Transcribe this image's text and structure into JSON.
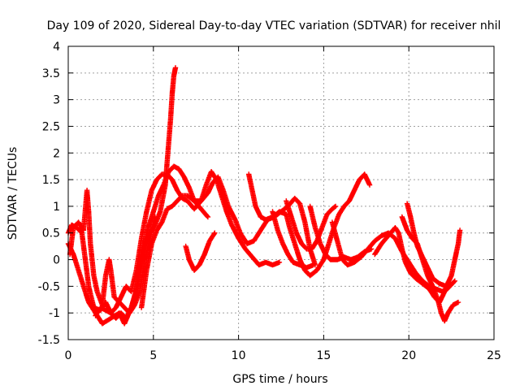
{
  "chart_data": {
    "type": "scatter",
    "title": "Day 109 of 2020, Sidereal Day-to-day VTEC variation (SDTVAR) for receiver nhil",
    "xlabel": "GPS time / hours",
    "ylabel": "SDTVAR / TECUs",
    "xlim": [
      0,
      25
    ],
    "ylim": [
      -1.5,
      4
    ],
    "x_ticks": [
      0,
      5,
      10,
      15,
      20,
      25
    ],
    "y_ticks": [
      -1.5,
      -1,
      -0.5,
      0,
      0.5,
      1,
      1.5,
      2,
      2.5,
      3,
      3.5,
      4
    ],
    "x_tick_labels": [
      "0",
      "5",
      "10",
      "15",
      "20",
      "25"
    ],
    "y_tick_labels": [
      "-1.5",
      "-1",
      "-0.5",
      "0",
      "0.5",
      "1",
      "1.5",
      "2",
      "2.5",
      "3",
      "3.5",
      "4"
    ],
    "grid": true,
    "marker": "plus",
    "color": "#ff0000",
    "series": [
      {
        "points": [
          [
            0.0,
            0.3
          ],
          [
            0.3,
            0.1
          ],
          [
            0.6,
            -0.2
          ],
          [
            0.9,
            -0.5
          ],
          [
            1.2,
            -0.8
          ],
          [
            1.6,
            -1.0
          ],
          [
            2.0,
            -1.2
          ],
          [
            2.5,
            -1.1
          ],
          [
            3.0,
            -1.0
          ],
          [
            3.3,
            -1.2
          ],
          [
            3.7,
            -0.9
          ],
          [
            4.0,
            -0.6
          ],
          [
            4.3,
            0.0
          ],
          [
            4.6,
            0.5
          ],
          [
            5.0,
            0.9
          ],
          [
            5.3,
            1.2
          ],
          [
            5.6,
            1.4
          ],
          [
            5.9,
            1.65
          ],
          [
            6.2,
            1.75
          ],
          [
            6.5,
            1.7
          ],
          [
            6.8,
            1.55
          ],
          [
            7.1,
            1.35
          ],
          [
            7.4,
            1.1
          ],
          [
            7.8,
            0.95
          ],
          [
            8.2,
            0.8
          ]
        ]
      },
      {
        "points": [
          [
            0.0,
            0.5
          ],
          [
            0.2,
            0.65
          ],
          [
            0.5,
            0.6
          ],
          [
            0.8,
            0.5
          ],
          [
            1.0,
            0.0
          ],
          [
            1.2,
            -0.5
          ],
          [
            1.5,
            -0.9
          ],
          [
            1.9,
            -0.95
          ],
          [
            2.2,
            -0.8
          ],
          [
            2.5,
            -1.0
          ],
          [
            2.8,
            -0.9
          ],
          [
            3.1,
            -0.7
          ],
          [
            3.4,
            -0.5
          ],
          [
            3.7,
            -0.6
          ],
          [
            4.0,
            -0.2
          ],
          [
            4.3,
            0.4
          ],
          [
            4.6,
            0.9
          ],
          [
            4.9,
            1.3
          ],
          [
            5.2,
            1.5
          ],
          [
            5.5,
            1.6
          ],
          [
            5.8,
            1.6
          ],
          [
            6.1,
            1.5
          ],
          [
            6.4,
            1.3
          ],
          [
            6.7,
            1.15
          ],
          [
            7.0,
            1.1
          ],
          [
            7.4,
            0.95
          ],
          [
            7.8,
            1.1
          ],
          [
            8.1,
            1.4
          ],
          [
            8.4,
            1.65
          ],
          [
            8.7,
            1.5
          ],
          [
            9.0,
            1.2
          ],
          [
            9.3,
            0.9
          ],
          [
            9.6,
            0.65
          ],
          [
            10.0,
            0.4
          ],
          [
            10.4,
            0.2
          ],
          [
            10.8,
            0.05
          ],
          [
            11.2,
            -0.1
          ],
          [
            11.6,
            -0.05
          ],
          [
            12.0,
            -0.1
          ],
          [
            12.4,
            -0.05
          ]
        ]
      },
      {
        "points": [
          [
            0.1,
            0.1
          ],
          [
            0.3,
            0.6
          ],
          [
            0.6,
            0.7
          ],
          [
            0.9,
            0.55
          ],
          [
            1.1,
            1.3
          ],
          [
            1.2,
            0.9
          ],
          [
            1.3,
            0.3
          ],
          [
            1.5,
            -0.3
          ],
          [
            1.7,
            -0.6
          ],
          [
            2.0,
            -0.85
          ],
          [
            2.2,
            -0.3
          ],
          [
            2.4,
            0.0
          ],
          [
            2.5,
            -0.2
          ],
          [
            2.7,
            -0.7
          ],
          [
            3.0,
            -0.8
          ],
          [
            3.3,
            -0.9
          ],
          [
            3.6,
            -1.0
          ],
          [
            3.9,
            -0.85
          ],
          [
            4.2,
            -0.6
          ],
          [
            4.5,
            0.0
          ],
          [
            4.8,
            0.4
          ],
          [
            5.1,
            0.8
          ]
        ]
      },
      {
        "points": [
          [
            1.6,
            -1.05
          ],
          [
            1.9,
            -0.9
          ],
          [
            2.2,
            -0.95
          ],
          [
            2.5,
            -1.0
          ],
          [
            2.8,
            -1.1
          ],
          [
            3.1,
            -1.0
          ],
          [
            3.4,
            -1.1
          ],
          [
            3.7,
            -0.9
          ],
          [
            4.0,
            -0.55
          ],
          [
            4.2,
            -0.15
          ],
          [
            4.5,
            0.3
          ],
          [
            4.8,
            0.5
          ],
          [
            5.1,
            0.65
          ],
          [
            5.4,
            0.9
          ],
          [
            5.7,
            1.4
          ],
          [
            5.85,
            2.0
          ],
          [
            6.0,
            2.6
          ],
          [
            6.1,
            3.1
          ],
          [
            6.2,
            3.45
          ],
          [
            6.3,
            3.6
          ]
        ]
      },
      {
        "points": [
          [
            4.3,
            -0.9
          ],
          [
            4.6,
            -0.2
          ],
          [
            4.9,
            0.3
          ],
          [
            5.2,
            0.55
          ],
          [
            5.5,
            0.7
          ],
          [
            5.8,
            0.95
          ],
          [
            6.1,
            1.0
          ],
          [
            6.4,
            1.1
          ],
          [
            6.7,
            1.2
          ],
          [
            7.0,
            1.2
          ],
          [
            7.4,
            1.1
          ],
          [
            7.8,
            1.1
          ],
          [
            8.2,
            1.25
          ],
          [
            8.5,
            1.45
          ],
          [
            8.8,
            1.55
          ],
          [
            9.1,
            1.3
          ],
          [
            9.4,
            1.0
          ],
          [
            9.8,
            0.75
          ],
          [
            10.1,
            0.5
          ],
          [
            10.5,
            0.3
          ],
          [
            10.9,
            0.35
          ],
          [
            11.3,
            0.55
          ],
          [
            11.7,
            0.75
          ],
          [
            12.1,
            0.8
          ],
          [
            12.5,
            0.9
          ],
          [
            12.9,
            1.0
          ],
          [
            13.3,
            1.15
          ],
          [
            13.6,
            1.05
          ],
          [
            13.9,
            0.7
          ],
          [
            14.2,
            0.2
          ],
          [
            14.5,
            -0.1
          ]
        ]
      },
      {
        "points": [
          [
            6.9,
            0.25
          ],
          [
            7.1,
            0.0
          ],
          [
            7.4,
            -0.2
          ],
          [
            7.7,
            -0.1
          ],
          [
            8.0,
            0.1
          ],
          [
            8.3,
            0.35
          ],
          [
            8.6,
            0.5
          ]
        ]
      },
      {
        "points": [
          [
            10.6,
            1.6
          ],
          [
            10.8,
            1.3
          ],
          [
            11.0,
            1.0
          ],
          [
            11.3,
            0.8
          ],
          [
            11.6,
            0.75
          ],
          [
            12.0,
            0.8
          ],
          [
            12.4,
            0.9
          ],
          [
            12.8,
            0.85
          ],
          [
            13.0,
            0.6
          ],
          [
            13.3,
            0.3
          ],
          [
            13.6,
            0.0
          ],
          [
            13.9,
            -0.2
          ],
          [
            14.2,
            -0.3
          ],
          [
            14.6,
            -0.2
          ],
          [
            15.0,
            0.0
          ],
          [
            15.3,
            0.3
          ],
          [
            15.6,
            0.6
          ],
          [
            15.9,
            0.85
          ],
          [
            16.2,
            1.0
          ],
          [
            16.5,
            1.1
          ],
          [
            16.8,
            1.3
          ],
          [
            17.1,
            1.5
          ],
          [
            17.4,
            1.6
          ],
          [
            17.7,
            1.4
          ]
        ]
      },
      {
        "points": [
          [
            12.0,
            0.9
          ],
          [
            12.3,
            0.55
          ],
          [
            12.6,
            0.3
          ],
          [
            12.9,
            0.1
          ],
          [
            13.2,
            -0.05
          ],
          [
            13.6,
            -0.1
          ],
          [
            14.0,
            -0.15
          ],
          [
            14.4,
            -0.1
          ]
        ]
      },
      {
        "points": [
          [
            12.8,
            1.1
          ],
          [
            13.1,
            0.8
          ],
          [
            13.4,
            0.5
          ],
          [
            13.7,
            0.3
          ],
          [
            14.0,
            0.2
          ],
          [
            14.3,
            0.2
          ],
          [
            14.6,
            0.35
          ],
          [
            14.9,
            0.6
          ],
          [
            15.2,
            0.85
          ],
          [
            15.5,
            0.95
          ],
          [
            15.7,
            1.0
          ]
        ]
      },
      {
        "points": [
          [
            14.2,
            1.0
          ],
          [
            14.5,
            0.6
          ],
          [
            14.8,
            0.3
          ],
          [
            15.1,
            0.1
          ],
          [
            15.4,
            0.0
          ],
          [
            15.8,
            0.0
          ],
          [
            16.2,
            0.05
          ],
          [
            16.6,
            0.0
          ],
          [
            17.0,
            0.05
          ],
          [
            17.4,
            0.15
          ],
          [
            17.8,
            0.2
          ]
        ]
      },
      {
        "points": [
          [
            15.5,
            0.7
          ],
          [
            15.8,
            0.35
          ],
          [
            16.1,
            0.0
          ],
          [
            16.4,
            -0.1
          ],
          [
            16.8,
            -0.05
          ],
          [
            17.2,
            0.05
          ],
          [
            17.6,
            0.2
          ],
          [
            18.0,
            0.35
          ],
          [
            18.4,
            0.45
          ],
          [
            18.8,
            0.5
          ],
          [
            19.2,
            0.4
          ],
          [
            19.6,
            0.15
          ],
          [
            20.0,
            -0.05
          ],
          [
            20.4,
            -0.25
          ],
          [
            20.8,
            -0.4
          ],
          [
            21.2,
            -0.5
          ],
          [
            21.6,
            -0.55
          ],
          [
            22.0,
            -0.6
          ],
          [
            22.4,
            -0.45
          ]
        ]
      },
      {
        "points": [
          [
            18.0,
            0.1
          ],
          [
            18.4,
            0.3
          ],
          [
            18.8,
            0.45
          ],
          [
            19.2,
            0.6
          ],
          [
            19.4,
            0.5
          ],
          [
            19.6,
            0.2
          ],
          [
            19.8,
            -0.05
          ],
          [
            20.1,
            -0.25
          ],
          [
            20.4,
            -0.35
          ],
          [
            20.8,
            -0.45
          ],
          [
            21.2,
            -0.55
          ],
          [
            21.5,
            -0.7
          ],
          [
            21.8,
            -0.8
          ],
          [
            22.1,
            -0.6
          ],
          [
            22.4,
            -0.5
          ],
          [
            22.7,
            -0.4
          ]
        ]
      },
      {
        "points": [
          [
            19.6,
            0.8
          ],
          [
            19.9,
            0.55
          ],
          [
            20.2,
            0.4
          ],
          [
            20.5,
            0.3
          ],
          [
            20.8,
            0.0
          ],
          [
            21.1,
            -0.3
          ],
          [
            21.4,
            -0.5
          ],
          [
            21.7,
            -0.75
          ],
          [
            21.9,
            -1.0
          ],
          [
            22.1,
            -1.15
          ],
          [
            22.3,
            -1.0
          ],
          [
            22.6,
            -0.85
          ],
          [
            22.9,
            -0.8
          ]
        ]
      },
      {
        "points": [
          [
            19.9,
            1.05
          ],
          [
            20.1,
            0.8
          ],
          [
            20.3,
            0.5
          ],
          [
            20.5,
            0.25
          ],
          [
            20.8,
            0.05
          ],
          [
            21.1,
            -0.15
          ],
          [
            21.4,
            -0.35
          ],
          [
            21.8,
            -0.45
          ],
          [
            22.2,
            -0.5
          ],
          [
            22.5,
            -0.3
          ],
          [
            22.7,
            0.0
          ],
          [
            22.9,
            0.3
          ],
          [
            23.0,
            0.55
          ]
        ]
      }
    ]
  }
}
